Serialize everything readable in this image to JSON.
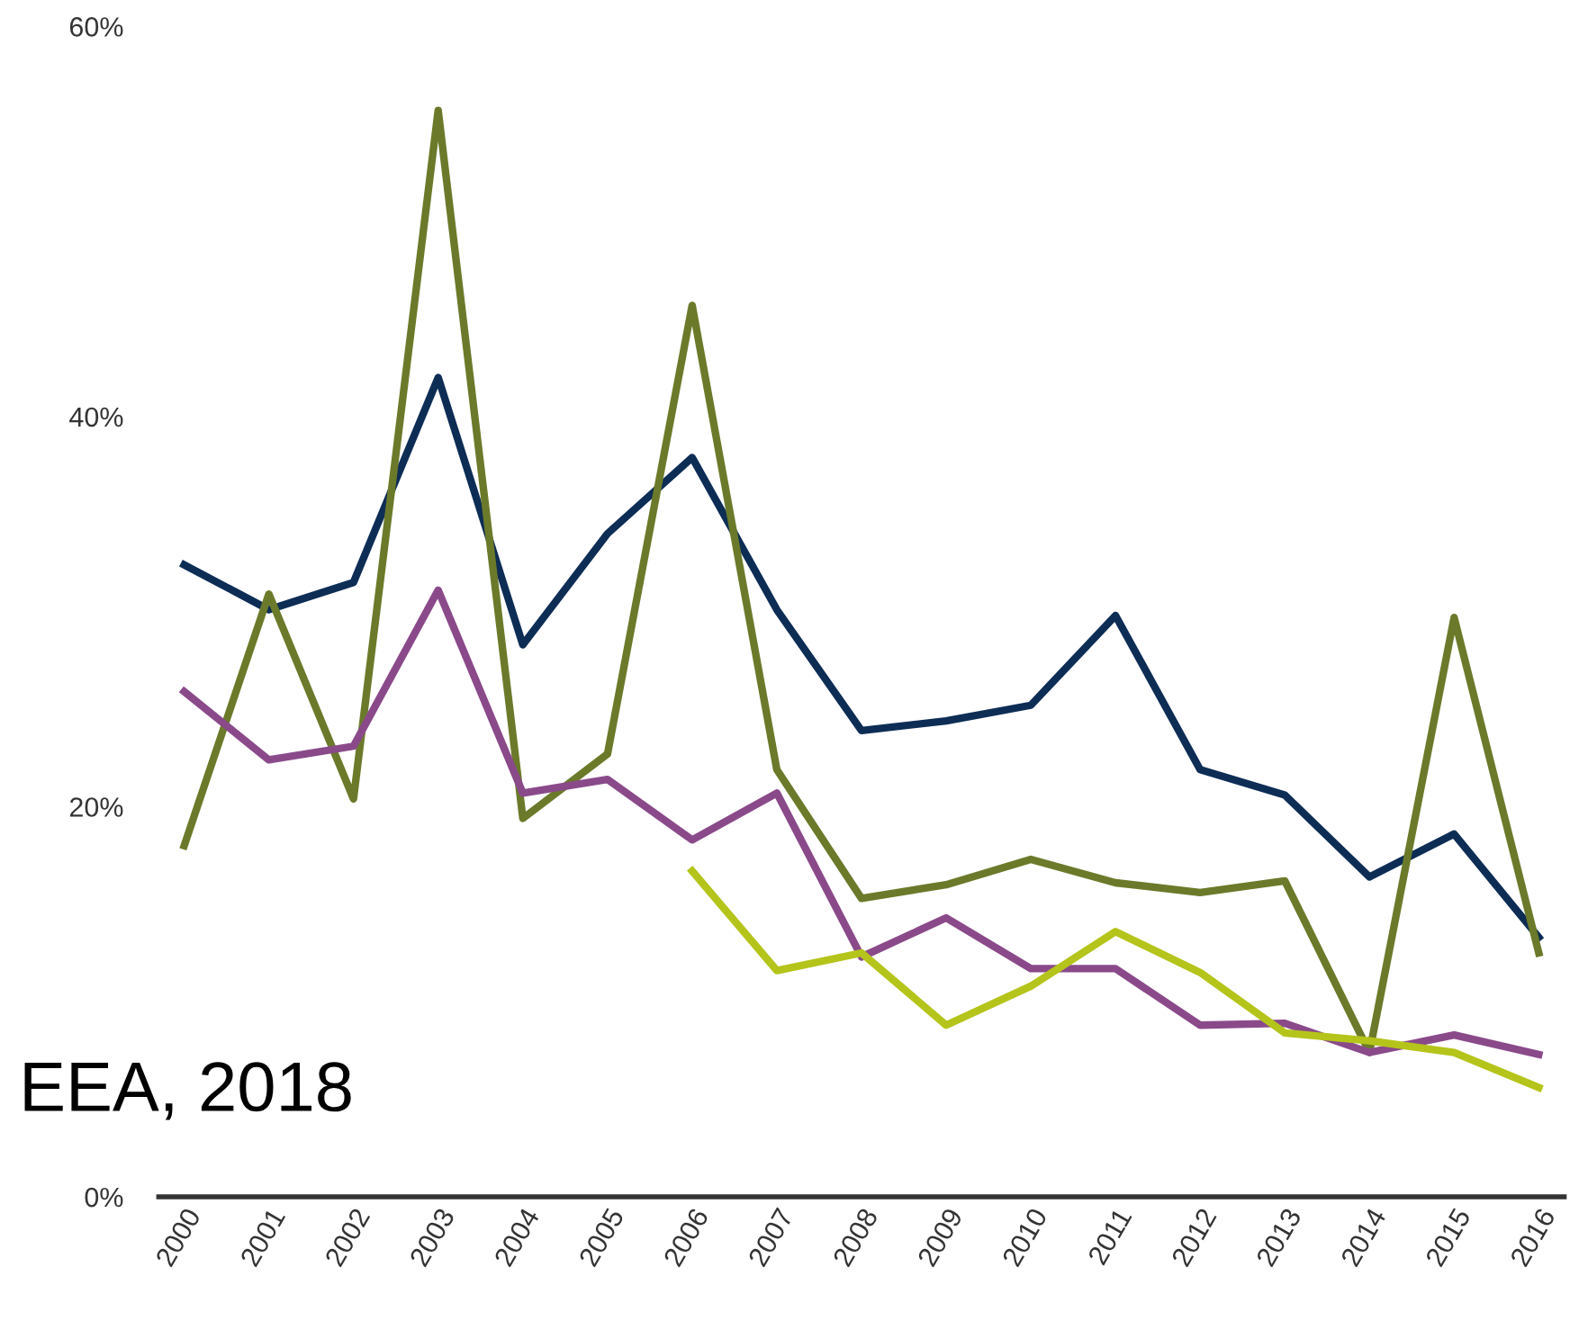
{
  "chart_data": {
    "type": "line",
    "categories": [
      "2000",
      "2001",
      "2002",
      "2003",
      "2004",
      "2005",
      "2006",
      "2007",
      "2008",
      "2009",
      "2010",
      "2011",
      "2012",
      "2013",
      "2014",
      "2015",
      "2016"
    ],
    "series": [
      {
        "color": "#0d2d55",
        "values": [
          32.4,
          30.1,
          31.5,
          42.0,
          28.3,
          34.0,
          37.9,
          30.1,
          23.9,
          24.4,
          25.2,
          29.8,
          21.9,
          20.6,
          16.4,
          18.6,
          13.3
        ]
      },
      {
        "color": "#6b7a2a",
        "values": [
          18.0,
          30.9,
          20.4,
          55.7,
          19.4,
          22.7,
          45.7,
          21.9,
          15.3,
          16.0,
          17.3,
          16.1,
          15.6,
          16.2,
          7.4,
          29.7,
          12.5
        ]
      },
      {
        "color": "#8a4a8a",
        "values": [
          25.9,
          22.4,
          23.1,
          31.1,
          20.7,
          21.4,
          18.3,
          20.7,
          12.3,
          14.3,
          11.7,
          11.7,
          8.8,
          8.9,
          7.4,
          8.3,
          7.3
        ]
      },
      {
        "color": "#b5c41a",
        "values": [
          null,
          null,
          null,
          null,
          null,
          null,
          16.7,
          11.6,
          12.5,
          8.8,
          10.8,
          13.6,
          11.5,
          8.4,
          8.0,
          7.4,
          5.6
        ]
      }
    ],
    "ylim": [
      0,
      60
    ],
    "yticks": [
      {
        "value": 0,
        "label": "0%"
      },
      {
        "value": 20,
        "label": "20%"
      },
      {
        "value": 40,
        "label": "40%"
      },
      {
        "value": 60,
        "label": "60%"
      }
    ],
    "annotations": [
      "EEA, 2018"
    ],
    "grid": false,
    "legend": false,
    "marker": "none",
    "line_style": "solid"
  }
}
